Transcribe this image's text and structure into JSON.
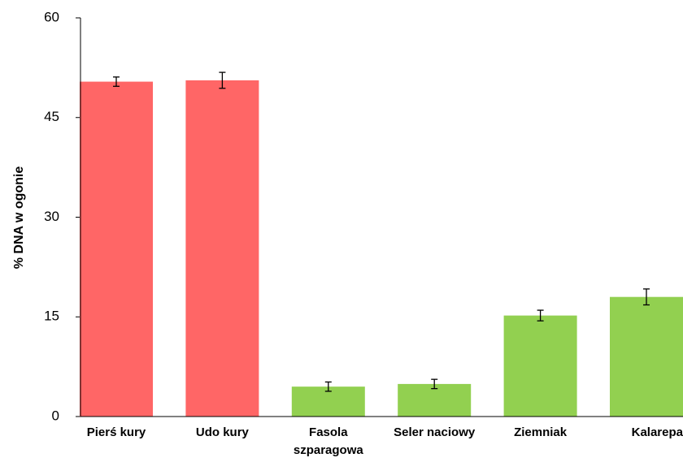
{
  "chart_data": {
    "type": "bar",
    "ylabel": "% DNA w ogonie",
    "categories": [
      "Pierś kury",
      "Udo kury",
      "Fasola\nszparagowa",
      "Seler naciowy",
      "Ziemniak",
      "Kalarepa"
    ],
    "values": [
      50.4,
      50.6,
      4.5,
      4.9,
      15.2,
      18.0
    ],
    "errors": [
      0.7,
      1.2,
      0.7,
      0.7,
      0.8,
      1.2
    ],
    "colors": [
      "#ff6666",
      "#ff6666",
      "#92d050",
      "#92d050",
      "#92d050",
      "#92d050"
    ],
    "ylim": [
      0,
      60
    ],
    "yticks": [
      0,
      15,
      30,
      45,
      60
    ],
    "grid": false
  }
}
